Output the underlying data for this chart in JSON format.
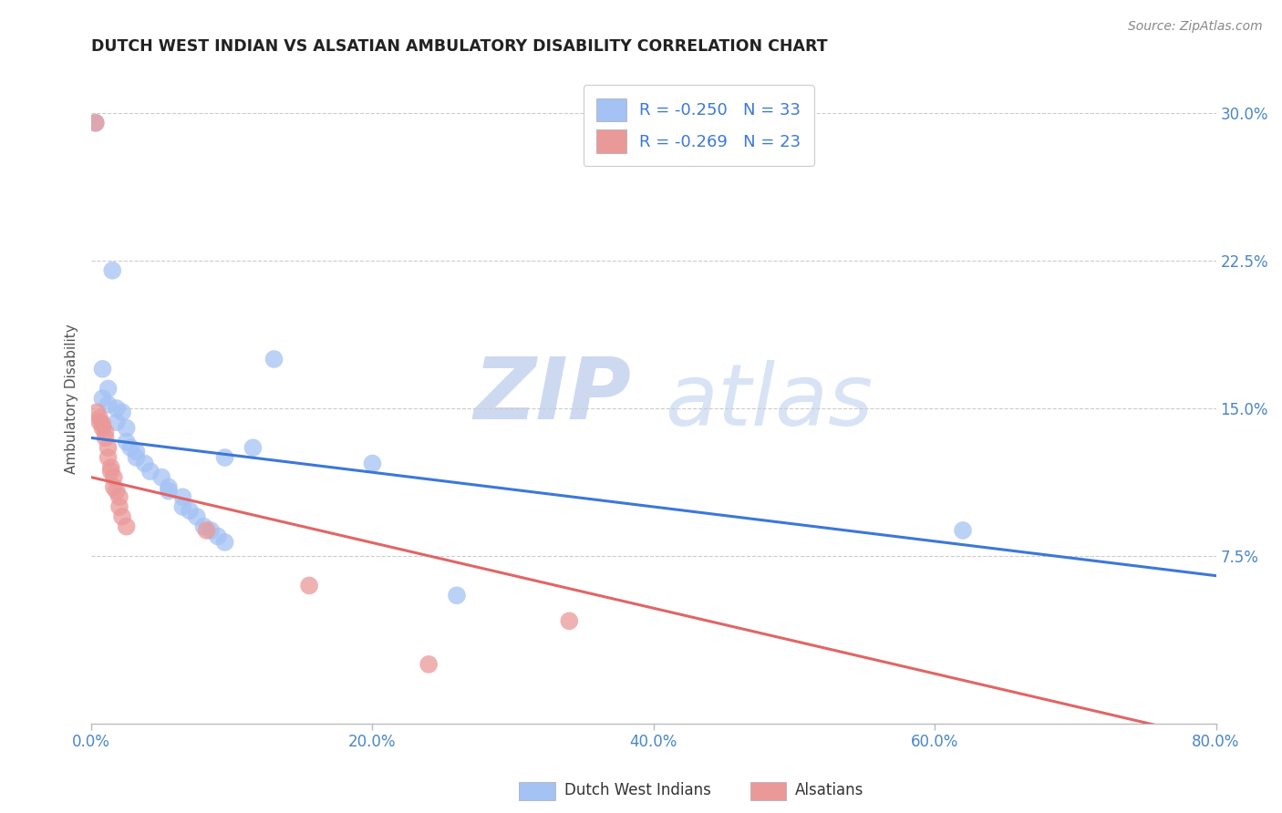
{
  "title": "DUTCH WEST INDIAN VS ALSATIAN AMBULATORY DISABILITY CORRELATION CHART",
  "source": "Source: ZipAtlas.com",
  "ylabel": "Ambulatory Disability",
  "xlim": [
    0.0,
    0.8
  ],
  "ylim": [
    -0.01,
    0.32
  ],
  "xtick_labels": [
    "0.0%",
    "20.0%",
    "40.0%",
    "60.0%",
    "80.0%"
  ],
  "xtick_vals": [
    0.0,
    0.2,
    0.4,
    0.6,
    0.8
  ],
  "ytick_labels": [
    "7.5%",
    "15.0%",
    "22.5%",
    "30.0%"
  ],
  "ytick_vals": [
    0.075,
    0.15,
    0.225,
    0.3
  ],
  "legend_labels": [
    "Dutch West Indians",
    "Alsatians"
  ],
  "legend_R": [
    "R = -0.250",
    "R = -0.269"
  ],
  "legend_N": [
    "N = 33",
    "N = 23"
  ],
  "blue_color": "#a4c2f4",
  "pink_color": "#ea9999",
  "blue_line_color": "#3c78d8",
  "pink_line_color": "#e06666",
  "blue_scatter": [
    [
      0.003,
      0.295
    ],
    [
      0.015,
      0.22
    ],
    [
      0.008,
      0.17
    ],
    [
      0.008,
      0.155
    ],
    [
      0.012,
      0.16
    ],
    [
      0.012,
      0.152
    ],
    [
      0.018,
      0.15
    ],
    [
      0.022,
      0.148
    ],
    [
      0.018,
      0.143
    ],
    [
      0.025,
      0.14
    ],
    [
      0.025,
      0.133
    ],
    [
      0.028,
      0.13
    ],
    [
      0.032,
      0.128
    ],
    [
      0.032,
      0.125
    ],
    [
      0.038,
      0.122
    ],
    [
      0.042,
      0.118
    ],
    [
      0.05,
      0.115
    ],
    [
      0.055,
      0.11
    ],
    [
      0.055,
      0.108
    ],
    [
      0.065,
      0.105
    ],
    [
      0.065,
      0.1
    ],
    [
      0.07,
      0.098
    ],
    [
      0.075,
      0.095
    ],
    [
      0.08,
      0.09
    ],
    [
      0.085,
      0.088
    ],
    [
      0.09,
      0.085
    ],
    [
      0.095,
      0.082
    ],
    [
      0.095,
      0.125
    ],
    [
      0.115,
      0.13
    ],
    [
      0.2,
      0.122
    ],
    [
      0.62,
      0.088
    ],
    [
      0.26,
      0.055
    ],
    [
      0.13,
      0.175
    ]
  ],
  "pink_scatter": [
    [
      0.003,
      0.295
    ],
    [
      0.004,
      0.148
    ],
    [
      0.006,
      0.145
    ],
    [
      0.006,
      0.143
    ],
    [
      0.008,
      0.142
    ],
    [
      0.008,
      0.14
    ],
    [
      0.01,
      0.138
    ],
    [
      0.01,
      0.135
    ],
    [
      0.012,
      0.13
    ],
    [
      0.012,
      0.125
    ],
    [
      0.014,
      0.12
    ],
    [
      0.014,
      0.118
    ],
    [
      0.016,
      0.115
    ],
    [
      0.016,
      0.11
    ],
    [
      0.018,
      0.108
    ],
    [
      0.02,
      0.105
    ],
    [
      0.02,
      0.1
    ],
    [
      0.022,
      0.095
    ],
    [
      0.025,
      0.09
    ],
    [
      0.082,
      0.088
    ],
    [
      0.155,
      0.06
    ],
    [
      0.34,
      0.042
    ],
    [
      0.24,
      0.02
    ]
  ],
  "blue_trendline": [
    [
      0.0,
      0.135
    ],
    [
      0.8,
      0.065
    ]
  ],
  "pink_trendline": [
    [
      0.0,
      0.115
    ],
    [
      0.8,
      -0.018
    ]
  ],
  "watermark_zip": "ZIP",
  "watermark_atlas": "atlas",
  "background_color": "#ffffff",
  "grid_color": "#cccccc"
}
